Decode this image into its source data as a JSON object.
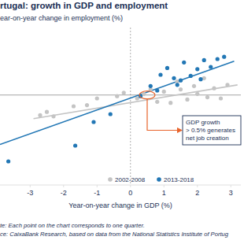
{
  "chart_data": {
    "type": "scatter",
    "title": "rtugal: growth in GDP and employment",
    "y_label": "ear-on-year change in employment (%)",
    "x_label": "Year-on-year change in GDP (%)",
    "notes": [
      "te: Each point on the chart corresponds to one quarter.",
      "ce: CaixaBank Research, based on data from the National Statistics Institute of Portug"
    ],
    "xlim": [
      -3.9,
      3.3
    ],
    "xticks": [
      -3,
      -2,
      -1,
      0,
      1,
      2,
      3
    ],
    "ylim": [
      -8,
      6
    ],
    "yticks": [],
    "tick_labels": "x",
    "grid": false,
    "legend": "bottom",
    "series": [
      {
        "name": "2002-2008",
        "color": "#c4c4c4",
        "marker": "circle",
        "x": [
          -2.7,
          -2.5,
          -2.3,
          -1.7,
          -1.3,
          -1.0,
          -0.4,
          -0.2,
          0.2,
          0.4,
          0.6,
          0.8,
          1.0,
          1.2,
          1.4,
          1.5,
          1.7,
          1.9,
          2.0,
          2.2,
          2.3,
          2.5,
          2.7,
          2.9
        ],
        "values": [
          -1.8,
          -1.5,
          -1.9,
          -1.0,
          -0.9,
          -0.3,
          -0.1,
          0.2,
          -0.3,
          0.1,
          0.5,
          -0.6,
          0.3,
          -0.7,
          1.2,
          0.5,
          -0.4,
          0.8,
          0.1,
          1.5,
          -0.2,
          0.6,
          -0.3,
          0.9
        ],
        "trend": {
          "x": [
            -2.9,
            3.2
          ],
          "values": [
            -2.1,
            0.9
          ]
        }
      },
      {
        "name": "2013-2018",
        "color": "#2277b5",
        "marker": "circle",
        "x": [
          -3.65,
          -1.65,
          -1.1,
          -0.6,
          0.3,
          0.6,
          0.8,
          0.9,
          1.1,
          1.3,
          1.4,
          1.5,
          1.6,
          1.8,
          2.0,
          2.1,
          2.2,
          2.4,
          2.6,
          2.8
        ],
        "values": [
          -5.9,
          -4.5,
          -2.4,
          -1.7,
          -0.1,
          0.8,
          0.4,
          1.8,
          2.4,
          1.5,
          0.9,
          1.3,
          2.9,
          1.7,
          2.3,
          1.4,
          3.1,
          2.5,
          3.2,
          3.4
        ],
        "trend": {
          "x": [
            -3.9,
            3.1
          ],
          "values": [
            -4.4,
            3.0
          ]
        }
      }
    ],
    "annotation": {
      "lines": [
        "GDP growth",
        "> 0.5% generates",
        "net job creation"
      ],
      "x": 0.5,
      "y": 0,
      "color": "#e8642c"
    }
  }
}
